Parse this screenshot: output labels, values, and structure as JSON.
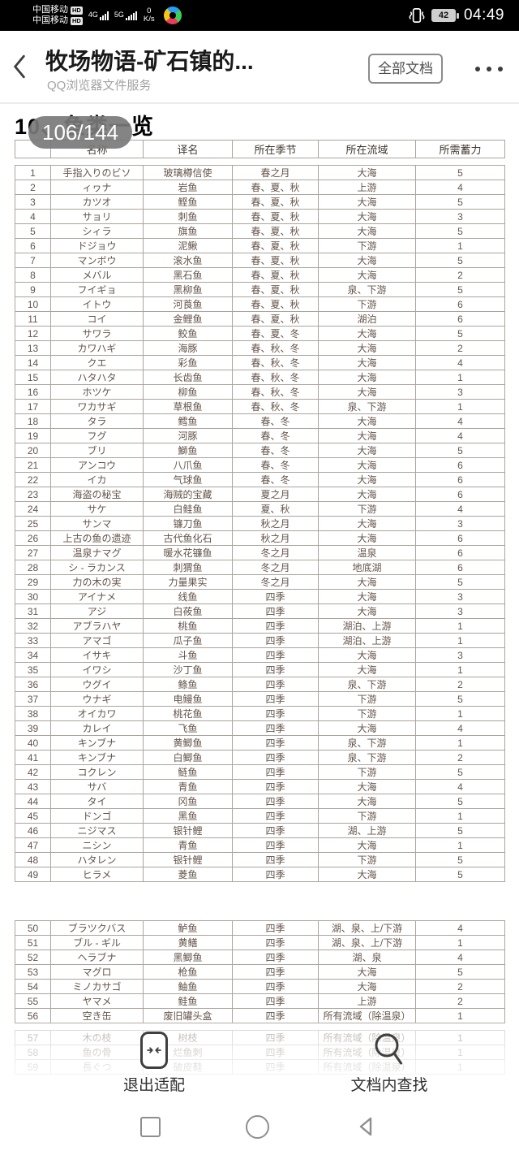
{
  "status_bar": {
    "carrier_line1": "中国移动",
    "carrier_line2": "中国移动",
    "hd_badge": "HD",
    "network_4g": "4G",
    "network_5g": "5G",
    "net_speed": "0",
    "net_speed_unit": "K/s",
    "battery_percent": "42",
    "time": "04:49"
  },
  "header": {
    "title": "牧场物语-矿石镇的...",
    "subtitle": "QQ浏览器文件服务",
    "all_docs_button": "全部文档"
  },
  "document": {
    "section_heading": "10、鱼类一览",
    "page_indicator": "106/144"
  },
  "table": {
    "headers": [
      "",
      "名称",
      "译名",
      "所在季节",
      "所在流域",
      "所需蓄力"
    ],
    "rows": [
      [
        "1",
        "手指入りのビソ",
        "玻璃樽信使",
        "春之月",
        "大海",
        "5"
      ],
      [
        "2",
        "ィヮナ",
        "岩鱼",
        "春、夏、秋",
        "上游",
        "4"
      ],
      [
        "3",
        "カツオ",
        "鲣鱼",
        "春、夏、秋",
        "大海",
        "5"
      ],
      [
        "4",
        "サョリ",
        "刺鱼",
        "春、夏、秋",
        "大海",
        "3"
      ],
      [
        "5",
        "シィラ",
        "旗鱼",
        "春、夏、秋",
        "大海",
        "5"
      ],
      [
        "6",
        "ドジョウ",
        "泥鳅",
        "春、夏、秋",
        "下游",
        "1"
      ],
      [
        "7",
        "マンボウ",
        "滚水鱼",
        "春、夏、秋",
        "大海",
        "5"
      ],
      [
        "8",
        "メバル",
        "黑石鱼",
        "春、夏、秋",
        "大海",
        "2"
      ],
      [
        "9",
        "フイギョ",
        "黑柳鱼",
        "春、夏、秋",
        "泉、下游",
        "5"
      ],
      [
        "10",
        "イトウ",
        "河莨鱼",
        "春、夏、秋",
        "下游",
        "6"
      ],
      [
        "11",
        "コイ",
        "金鲤鱼",
        "春、夏、秋",
        "湖泊",
        "6"
      ],
      [
        "12",
        "サワラ",
        "鲛鱼",
        "春、夏、冬",
        "大海",
        "5"
      ],
      [
        "13",
        "カワハギ",
        "海豚",
        "春、秋、冬",
        "大海",
        "2"
      ],
      [
        "14",
        "クエ",
        "彩鱼",
        "春、秋、冬",
        "大海",
        "4"
      ],
      [
        "15",
        "ハタハタ",
        "长齿鱼",
        "春、秋、冬",
        "大海",
        "1"
      ],
      [
        "16",
        "ホツケ",
        "柳鱼",
        "春、秋、冬",
        "大海",
        "3"
      ],
      [
        "17",
        "ワカサギ",
        "草根鱼",
        "春、秋、冬",
        "泉、下游",
        "1"
      ],
      [
        "18",
        "タラ",
        "鳕鱼",
        "春、冬",
        "大海",
        "4"
      ],
      [
        "19",
        "フグ",
        "河豚",
        "春、冬",
        "大海",
        "4"
      ],
      [
        "20",
        "ブリ",
        "鰤鱼",
        "春、冬",
        "大海",
        "5"
      ],
      [
        "21",
        "アンコウ",
        "八爪鱼",
        "春、冬",
        "大海",
        "6"
      ],
      [
        "22",
        "イカ",
        "气球鱼",
        "春、冬",
        "大海",
        "6"
      ],
      [
        "23",
        "海盗の秘宝",
        "海贼的宝藏",
        "夏之月",
        "大海",
        "6"
      ],
      [
        "24",
        "サケ",
        "白鲑鱼",
        "夏、秋",
        "下游",
        "4"
      ],
      [
        "25",
        "サンマ",
        "镰刀鱼",
        "秋之月",
        "大海",
        "3"
      ],
      [
        "26",
        "上古の鱼の遗迹",
        "古代鱼化石",
        "秋之月",
        "大海",
        "6"
      ],
      [
        "27",
        "温泉ナマグ",
        "暖水花镰鱼",
        "冬之月",
        "温泉",
        "6"
      ],
      [
        "28",
        "シ - ラカンス",
        "刺猬鱼",
        "冬之月",
        "地底湖",
        "6"
      ],
      [
        "29",
        "力の木の実",
        "力量果实",
        "冬之月",
        "大海",
        "5"
      ],
      [
        "30",
        "アイナメ",
        "线鱼",
        "四季",
        "大海",
        "3"
      ],
      [
        "31",
        "アジ",
        "白莜鱼",
        "四季",
        "大海",
        "3"
      ],
      [
        "32",
        "アブラハヤ",
        "桃鱼",
        "四季",
        "湖泊、上游",
        "1"
      ],
      [
        "33",
        "アマゴ",
        "瓜子鱼",
        "四季",
        "湖泊、上游",
        "1"
      ],
      [
        "34",
        "イサキ",
        "斗鱼",
        "四季",
        "大海",
        "3"
      ],
      [
        "35",
        "イワシ",
        "沙丁鱼",
        "四季",
        "大海",
        "1"
      ],
      [
        "36",
        "ウグイ",
        "鲦鱼",
        "四季",
        "泉、下游",
        "2"
      ],
      [
        "37",
        "ウナギ",
        "电鳗鱼",
        "四季",
        "下游",
        "5"
      ],
      [
        "38",
        "オイカワ",
        "桃花鱼",
        "四季",
        "下游",
        "1"
      ],
      [
        "39",
        "カレイ",
        "飞鱼",
        "四季",
        "大海",
        "4"
      ],
      [
        "40",
        "キンブナ",
        "黄鲫鱼",
        "四季",
        "泉、下游",
        "1"
      ],
      [
        "41",
        "キンブナ",
        "白鲫鱼",
        "四季",
        "泉、下游",
        "2"
      ],
      [
        "42",
        "コクレン",
        "鲢鱼",
        "四季",
        "下游",
        "5"
      ],
      [
        "43",
        "サバ",
        "青鱼",
        "四季",
        "大海",
        "4"
      ],
      [
        "44",
        "タイ",
        "冈鱼",
        "四季",
        "大海",
        "5"
      ],
      [
        "45",
        "ドンゴ",
        "黑鱼",
        "四季",
        "下游",
        "1"
      ],
      [
        "46",
        "ニジマス",
        "银针鲤",
        "四季",
        "湖、上游",
        "5"
      ],
      [
        "47",
        "ニシン",
        "青鱼",
        "四季",
        "大海",
        "1"
      ],
      [
        "48",
        "ハタレン",
        "银针鲤",
        "四季",
        "下游",
        "5"
      ],
      [
        "49",
        "ヒラメ",
        "菱鱼",
        "四季",
        "大海",
        "5"
      ]
    ],
    "rows_group2": [
      [
        "50",
        "ブラツクバス",
        "鲈鱼",
        "四季",
        "湖、泉、上/下游",
        "4"
      ],
      [
        "51",
        "ブル - ギル",
        "黄鳝",
        "四季",
        "湖、泉、上/下游",
        "1"
      ],
      [
        "52",
        "ヘラブナ",
        "黑鲫鱼",
        "四季",
        "湖、泉",
        "4"
      ],
      [
        "53",
        "マグロ",
        "枪鱼",
        "四季",
        "大海",
        "5"
      ],
      [
        "54",
        "ミノカサゴ",
        "鲉鱼",
        "四季",
        "大海",
        "2"
      ],
      [
        "55",
        "ヤマメ",
        "鲑鱼",
        "四季",
        "上游",
        "2"
      ],
      [
        "56",
        "空き缶",
        "废旧罐头盒",
        "四季",
        "所有流域（除温泉）",
        "1"
      ]
    ],
    "rows_faded": [
      [
        "57",
        "木の枝",
        "树枝",
        "四季",
        "所有流域（除温泉）",
        "1"
      ],
      [
        "58",
        "鱼の骨",
        "烂鱼刺",
        "四季",
        "所有流域（除温泉）",
        "1"
      ],
      [
        "59",
        "長ぐつ",
        "破皮鞋",
        "四季",
        "所有流域（除温泉）",
        "1"
      ]
    ]
  },
  "toolbar": {
    "exit_fit": "退出适配",
    "find_in_doc": "文档内查找"
  },
  "colors": {
    "status_bar_bg": "#000000",
    "table_text": "#64544a",
    "table_border": "#aba49e"
  }
}
